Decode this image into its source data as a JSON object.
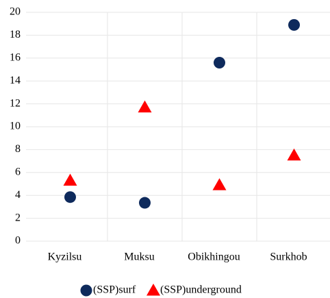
{
  "chart_data": {
    "type": "scatter",
    "categories": [
      "Kyzilsu",
      "Muksu",
      "Obikhingou",
      "Surkhob"
    ],
    "series": [
      {
        "name": "(SSP)surf",
        "color": "#0e2a5c",
        "marker": "circle",
        "values": [
          3.85,
          3.35,
          15.6,
          18.9
        ]
      },
      {
        "name": "(SSP)underground",
        "color": "#ff0000",
        "marker": "triangle",
        "values": [
          5.3,
          11.7,
          4.9,
          7.5
        ]
      }
    ],
    "ylim": [
      0,
      20
    ],
    "yticks": [
      0,
      2,
      4,
      6,
      8,
      10,
      12,
      14,
      16,
      18,
      20
    ],
    "grid": true,
    "legend": "bottom"
  }
}
